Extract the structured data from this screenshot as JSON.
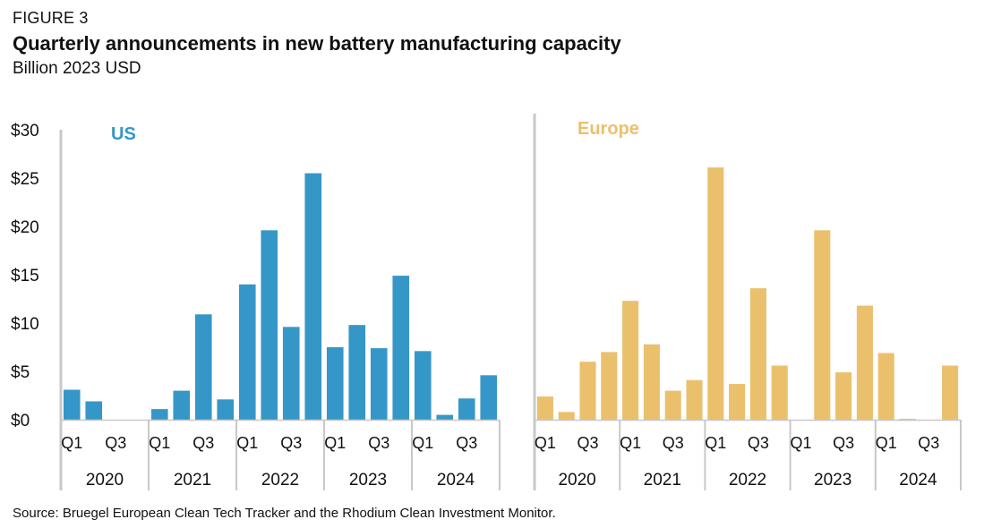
{
  "figure_label": "FIGURE 3",
  "title": "Quarterly announcements in new battery manufacturing capacity",
  "subtitle": "Billion 2023 USD",
  "source": "Source: Bruegel European Clean Tech Tracker and the Rhodium Clean Investment Monitor.",
  "colors": {
    "us": "#3597c8",
    "europe": "#ebc06d",
    "axis": "#c8c8c8"
  },
  "chart_data": [
    {
      "type": "bar",
      "title": "US",
      "ylim": [
        0,
        30
      ],
      "y_ticks": [
        "$0",
        "$5",
        "$10",
        "$15",
        "$20",
        "$25",
        "$30"
      ],
      "quarter_labels": [
        "Q1",
        "Q3"
      ],
      "years": [
        "2020",
        "2021",
        "2022",
        "2023",
        "2024"
      ],
      "categories": [
        "2020 Q1",
        "2020 Q2",
        "2020 Q3",
        "2020 Q4",
        "2021 Q1",
        "2021 Q2",
        "2021 Q3",
        "2021 Q4",
        "2022 Q1",
        "2022 Q2",
        "2022 Q3",
        "2022 Q4",
        "2023 Q1",
        "2023 Q2",
        "2023 Q3",
        "2023 Q4",
        "2024 Q1",
        "2024 Q2",
        "2024 Q3",
        "2024 Q4"
      ],
      "values": [
        3.1,
        1.9,
        0,
        0,
        1.1,
        3.0,
        10.9,
        2.1,
        14.0,
        19.6,
        9.6,
        25.5,
        7.5,
        9.8,
        7.4,
        14.9,
        7.1,
        0.5,
        2.2,
        4.6
      ]
    },
    {
      "type": "bar",
      "title": "Europe",
      "ylim": [
        0,
        30
      ],
      "quarter_labels": [
        "Q1",
        "Q3"
      ],
      "years": [
        "2020",
        "2021",
        "2022",
        "2023",
        "2024"
      ],
      "categories": [
        "2020 Q1",
        "2020 Q2",
        "2020 Q3",
        "2020 Q4",
        "2021 Q1",
        "2021 Q2",
        "2021 Q3",
        "2021 Q4",
        "2022 Q1",
        "2022 Q2",
        "2022 Q3",
        "2022 Q4",
        "2023 Q1",
        "2023 Q2",
        "2023 Q3",
        "2023 Q4",
        "2024 Q1",
        "2024 Q2",
        "2024 Q3",
        "2024 Q4"
      ],
      "values": [
        2.4,
        0.8,
        6.0,
        7.0,
        12.3,
        7.8,
        3.0,
        4.1,
        26.1,
        3.7,
        13.6,
        5.6,
        0,
        19.6,
        4.9,
        11.8,
        6.9,
        0.1,
        0,
        5.6
      ]
    }
  ]
}
